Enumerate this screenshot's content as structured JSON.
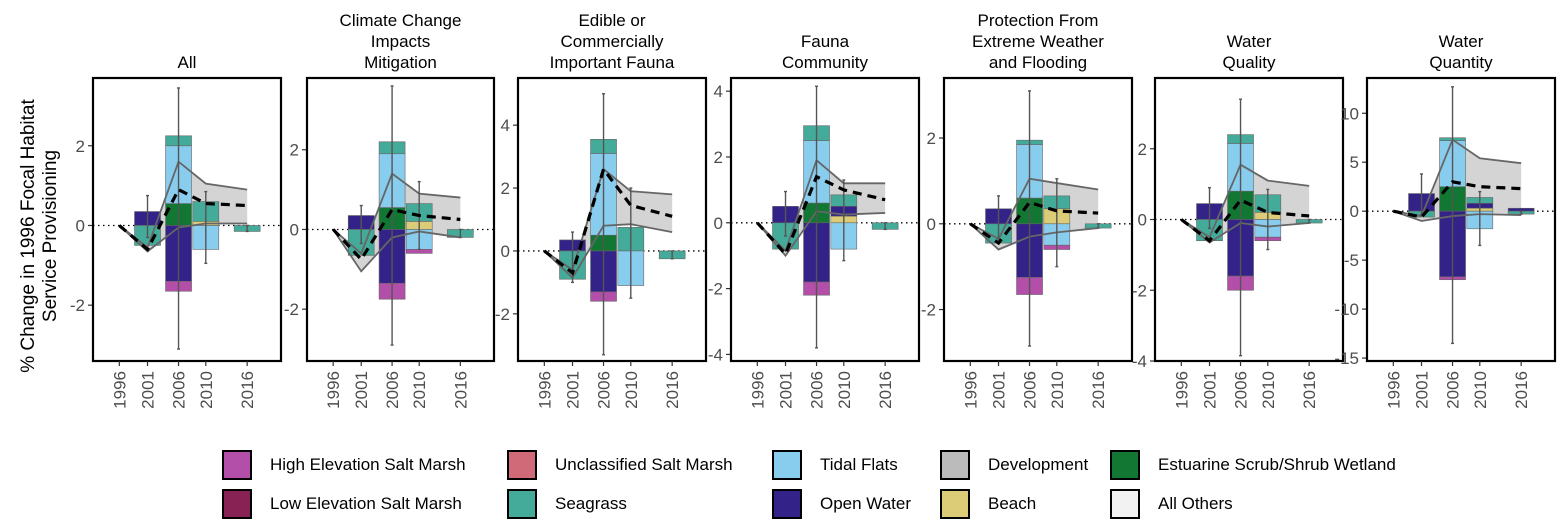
{
  "y_axis_title": [
    "% Change in 1996 Focal Habitat",
    "Service Provisioning"
  ],
  "legend": [
    {
      "label": "High Elevation Salt Marsh",
      "color": "#B34FA8"
    },
    {
      "label": "Unclassified Salt Marsh",
      "color": "#D06A78"
    },
    {
      "label": "Tidal Flats",
      "color": "#88CCEE"
    },
    {
      "label": "Development",
      "color": "#BBBBBB"
    },
    {
      "label": "Estuarine Scrub/Shrub Wetland",
      "color": "#117733"
    },
    {
      "label": "Low Elevation Salt Marsh",
      "color": "#882255"
    },
    {
      "label": "Seagrass",
      "color": "#44AA99"
    },
    {
      "label": "Open Water",
      "color": "#332288"
    },
    {
      "label": "Beach",
      "color": "#DDCC77"
    },
    {
      "label": "All Others",
      "color": "#F2F2F2"
    }
  ],
  "chart_data": [
    {
      "type": "bar",
      "title": "All",
      "x": [
        "1996",
        "2001",
        "2006",
        "2010",
        "2016"
      ],
      "ylim": [
        -3.4,
        3.7
      ],
      "yticks": [
        -2,
        0,
        2
      ],
      "stacks": [
        [],
        [
          {
            "habitat": "Open Water",
            "lo": 0,
            "hi": 0.35
          },
          {
            "habitat": "Seagrass",
            "lo": -0.5,
            "hi": 0
          }
        ],
        [
          {
            "habitat": "Estuarine Scrub/Shrub Wetland",
            "lo": 0,
            "hi": 0.55
          },
          {
            "habitat": "Tidal Flats",
            "lo": 0.55,
            "hi": 2.0
          },
          {
            "habitat": "Seagrass",
            "lo": 2.0,
            "hi": 2.25
          },
          {
            "habitat": "Open Water",
            "lo": -1.4,
            "hi": 0
          },
          {
            "habitat": "High Elevation Salt Marsh",
            "lo": -1.65,
            "hi": -1.4
          }
        ],
        [
          {
            "habitat": "Seagrass",
            "lo": 0,
            "hi": 0.6
          },
          {
            "habitat": "Beach",
            "lo": 0,
            "hi": 0.1
          },
          {
            "habitat": "Tidal Flats",
            "lo": -0.6,
            "hi": 0
          }
        ],
        [
          {
            "habitat": "Seagrass",
            "lo": -0.15,
            "hi": 0
          }
        ]
      ],
      "mean": [
        0,
        -0.6,
        0.9,
        0.55,
        0.5
      ],
      "band_hi": [
        0,
        -0.55,
        1.6,
        1.05,
        0.9
      ],
      "band_lo": [
        0,
        -0.65,
        -0.05,
        0.05,
        0.05
      ],
      "err_lo": [
        0,
        -0.3,
        -3.1,
        -0.95,
        -0.15
      ],
      "err_hi": [
        0,
        0.75,
        3.45,
        0.85,
        0.0
      ]
    },
    {
      "type": "bar",
      "title": "Climate Change\nImpacts\nMitigation",
      "x": [
        "1996",
        "2001",
        "2006",
        "2010",
        "2016"
      ],
      "ylim": [
        -3.3,
        3.8
      ],
      "yticks": [
        -2,
        0,
        2
      ],
      "stacks": [
        [],
        [
          {
            "habitat": "Open Water",
            "lo": 0,
            "hi": 0.35
          },
          {
            "habitat": "Seagrass",
            "lo": -0.65,
            "hi": 0
          }
        ],
        [
          {
            "habitat": "Estuarine Scrub/Shrub Wetland",
            "lo": 0,
            "hi": 0.55
          },
          {
            "habitat": "Tidal Flats",
            "lo": 0.55,
            "hi": 1.9
          },
          {
            "habitat": "Seagrass",
            "lo": 1.9,
            "hi": 2.2
          },
          {
            "habitat": "Open Water",
            "lo": -1.35,
            "hi": 0
          },
          {
            "habitat": "High Elevation Salt Marsh",
            "lo": -1.75,
            "hi": -1.35
          }
        ],
        [
          {
            "habitat": "Seagrass",
            "lo": 0.2,
            "hi": 0.65
          },
          {
            "habitat": "Beach",
            "lo": 0,
            "hi": 0.2
          },
          {
            "habitat": "Tidal Flats",
            "lo": -0.5,
            "hi": 0
          },
          {
            "habitat": "High Elevation Salt Marsh",
            "lo": -0.6,
            "hi": -0.5
          }
        ],
        [
          {
            "habitat": "Seagrass",
            "lo": -0.2,
            "hi": 0
          }
        ]
      ],
      "mean": [
        0,
        -0.75,
        0.5,
        0.35,
        0.25
      ],
      "band_hi": [
        0,
        -0.6,
        1.4,
        0.9,
        0.8
      ],
      "band_lo": [
        0,
        -1.05,
        -0.2,
        -0.05,
        -0.2
      ],
      "err_lo": [
        0,
        -0.35,
        -2.9,
        -0.5,
        -0.2
      ],
      "err_hi": [
        0,
        0.6,
        3.6,
        1.2,
        0.0
      ]
    },
    {
      "type": "bar",
      "title": "Edible or\nCommercially\nImportant Fauna",
      "x": [
        "1996",
        "2001",
        "2006",
        "2010",
        "2016"
      ],
      "ylim": [
        -3.5,
        5.5
      ],
      "yticks": [
        -2,
        0,
        2,
        4
      ],
      "stacks": [
        [],
        [
          {
            "habitat": "Open Water",
            "lo": 0,
            "hi": 0.35
          },
          {
            "habitat": "Seagrass",
            "lo": -0.9,
            "hi": 0
          }
        ],
        [
          {
            "habitat": "Estuarine Scrub/Shrub Wetland",
            "lo": 0,
            "hi": 0.5
          },
          {
            "habitat": "Tidal Flats",
            "lo": 0.5,
            "hi": 3.1
          },
          {
            "habitat": "Seagrass",
            "lo": 3.1,
            "hi": 3.55
          },
          {
            "habitat": "Open Water",
            "lo": -1.3,
            "hi": 0
          },
          {
            "habitat": "High Elevation Salt Marsh",
            "lo": -1.6,
            "hi": -1.3
          }
        ],
        [
          {
            "habitat": "Seagrass",
            "lo": 0,
            "hi": 0.75
          },
          {
            "habitat": "Tidal Flats",
            "lo": -1.1,
            "hi": 0
          }
        ],
        [
          {
            "habitat": "Seagrass",
            "lo": -0.25,
            "hi": 0
          }
        ]
      ],
      "mean": [
        0,
        -0.7,
        2.6,
        1.45,
        1.1
      ],
      "band_hi": [
        0,
        -0.6,
        2.6,
        1.9,
        1.8
      ],
      "band_lo": [
        0,
        -0.85,
        0.8,
        0.85,
        0.6
      ],
      "err_lo": [
        0,
        -1.0,
        -3.3,
        -1.5,
        -0.25
      ],
      "err_hi": [
        0,
        0.6,
        5.0,
        2.0,
        0.0
      ]
    },
    {
      "type": "bar",
      "title": "Fauna\nCommunity",
      "x": [
        "1996",
        "2001",
        "2006",
        "2010",
        "2016"
      ],
      "ylim": [
        -4.2,
        4.4
      ],
      "yticks": [
        -4,
        -2,
        0,
        2,
        4
      ],
      "stacks": [
        [],
        [
          {
            "habitat": "Open Water",
            "lo": 0,
            "hi": 0.5
          },
          {
            "habitat": "Seagrass",
            "lo": -0.8,
            "hi": 0
          }
        ],
        [
          {
            "habitat": "Estuarine Scrub/Shrub Wetland",
            "lo": 0,
            "hi": 0.6
          },
          {
            "habitat": "Tidal Flats",
            "lo": 0.6,
            "hi": 2.5
          },
          {
            "habitat": "Seagrass",
            "lo": 2.5,
            "hi": 2.95
          },
          {
            "habitat": "Open Water",
            "lo": -1.8,
            "hi": 0
          },
          {
            "habitat": "High Elevation Salt Marsh",
            "lo": -2.2,
            "hi": -1.8
          }
        ],
        [
          {
            "habitat": "Seagrass",
            "lo": 0.5,
            "hi": 0.85
          },
          {
            "habitat": "Open Water",
            "lo": 0.2,
            "hi": 0.5
          },
          {
            "habitat": "Beach",
            "lo": 0,
            "hi": 0.2
          },
          {
            "habitat": "Tidal Flats",
            "lo": -0.8,
            "hi": 0
          }
        ],
        [
          {
            "habitat": "Seagrass",
            "lo": -0.2,
            "hi": 0
          }
        ]
      ],
      "mean": [
        0,
        -0.95,
        1.4,
        1.0,
        0.7
      ],
      "band_hi": [
        0,
        -0.85,
        1.9,
        1.2,
        1.2
      ],
      "band_lo": [
        0,
        -1.0,
        0.35,
        0.25,
        0.3
      ],
      "err_lo": [
        0,
        -0.4,
        -3.8,
        -1.15,
        -0.2
      ],
      "err_hi": [
        0,
        0.95,
        4.15,
        1.3,
        0.0
      ]
    },
    {
      "type": "bar",
      "title": "Protection From\nExtreme Weather\nand Flooding",
      "x": [
        "1996",
        "2001",
        "2006",
        "2010",
        "2016"
      ],
      "ylim": [
        -3.2,
        3.4
      ],
      "yticks": [
        -2,
        0,
        2
      ],
      "stacks": [
        [],
        [
          {
            "habitat": "Open Water",
            "lo": 0,
            "hi": 0.35
          },
          {
            "habitat": "Seagrass",
            "lo": -0.45,
            "hi": 0
          }
        ],
        [
          {
            "habitat": "Estuarine Scrub/Shrub Wetland",
            "lo": 0,
            "hi": 0.6
          },
          {
            "habitat": "Tidal Flats",
            "lo": 0.6,
            "hi": 1.85
          },
          {
            "habitat": "Seagrass",
            "lo": 1.85,
            "hi": 1.95
          },
          {
            "habitat": "Open Water",
            "lo": -1.25,
            "hi": 0
          },
          {
            "habitat": "High Elevation Salt Marsh",
            "lo": -1.65,
            "hi": -1.25
          }
        ],
        [
          {
            "habitat": "Seagrass",
            "lo": 0.35,
            "hi": 0.65
          },
          {
            "habitat": "Beach",
            "lo": 0,
            "hi": 0.35
          },
          {
            "habitat": "Tidal Flats",
            "lo": -0.5,
            "hi": 0
          },
          {
            "habitat": "High Elevation Salt Marsh",
            "lo": -0.6,
            "hi": -0.5
          }
        ],
        [
          {
            "habitat": "Seagrass",
            "lo": -0.1,
            "hi": 0
          }
        ]
      ],
      "mean": [
        0,
        -0.45,
        0.5,
        0.3,
        0.25
      ],
      "band_hi": [
        0,
        -0.35,
        1.05,
        0.95,
        0.8
      ],
      "band_lo": [
        0,
        -0.6,
        -0.3,
        -0.2,
        -0.1
      ],
      "err_lo": [
        0,
        -0.35,
        -2.85,
        -1.0,
        -0.1
      ],
      "err_hi": [
        0,
        0.65,
        3.1,
        1.05,
        0.0
      ]
    },
    {
      "type": "bar",
      "title": "Water\nQuality",
      "x": [
        "1996",
        "2001",
        "2006",
        "2010",
        "2016"
      ],
      "ylim": [
        -4.0,
        4.0
      ],
      "yticks": [
        -4,
        -2,
        0,
        2
      ],
      "stacks": [
        [],
        [
          {
            "habitat": "Open Water",
            "lo": 0,
            "hi": 0.45
          },
          {
            "habitat": "Seagrass",
            "lo": -0.6,
            "hi": 0
          }
        ],
        [
          {
            "habitat": "Estuarine Scrub/Shrub Wetland",
            "lo": 0,
            "hi": 0.8
          },
          {
            "habitat": "Tidal Flats",
            "lo": 0.8,
            "hi": 2.15
          },
          {
            "habitat": "Seagrass",
            "lo": 2.15,
            "hi": 2.4
          },
          {
            "habitat": "Open Water",
            "lo": -1.6,
            "hi": 0
          },
          {
            "habitat": "High Elevation Salt Marsh",
            "lo": -2.0,
            "hi": -1.6
          }
        ],
        [
          {
            "habitat": "Seagrass",
            "lo": 0.2,
            "hi": 0.7
          },
          {
            "habitat": "Beach",
            "lo": 0,
            "hi": 0.2
          },
          {
            "habitat": "Tidal Flats",
            "lo": -0.5,
            "hi": 0
          },
          {
            "habitat": "High Elevation Salt Marsh",
            "lo": -0.6,
            "hi": -0.5
          }
        ],
        [
          {
            "habitat": "Seagrass",
            "lo": -0.1,
            "hi": 0
          }
        ]
      ],
      "mean": [
        0,
        -0.6,
        0.55,
        0.2,
        0.1
      ],
      "band_hi": [
        0,
        -0.5,
        1.55,
        1.1,
        0.95
      ],
      "band_lo": [
        0,
        -0.65,
        -0.1,
        -0.2,
        -0.1
      ],
      "err_lo": [
        0,
        -0.25,
        -3.85,
        -0.85,
        -0.1
      ],
      "err_hi": [
        0,
        0.9,
        3.4,
        0.85,
        0.0
      ]
    },
    {
      "type": "bar",
      "title": "Water\nQuantity",
      "x": [
        "1996",
        "2001",
        "2006",
        "2010",
        "2016"
      ],
      "ylim": [
        -15.3,
        13.6
      ],
      "yticks": [
        -15,
        -10,
        -5,
        0,
        5,
        10
      ],
      "stacks": [
        [],
        [
          {
            "habitat": "Open Water",
            "lo": 0,
            "hi": 1.8
          },
          {
            "habitat": "Seagrass",
            "lo": -0.6,
            "hi": 0
          }
        ],
        [
          {
            "habitat": "Estuarine Scrub/Shrub Wetland",
            "lo": 0,
            "hi": 2.5
          },
          {
            "habitat": "Tidal Flats",
            "lo": 2.5,
            "hi": 7.2
          },
          {
            "habitat": "Seagrass",
            "lo": 7.2,
            "hi": 7.5
          },
          {
            "habitat": "Open Water",
            "lo": -6.7,
            "hi": 0
          },
          {
            "habitat": "High Elevation Salt Marsh",
            "lo": -7.0,
            "hi": -6.7
          }
        ],
        [
          {
            "habitat": "Seagrass",
            "lo": 0.8,
            "hi": 1.4
          },
          {
            "habitat": "Open Water",
            "lo": 0.3,
            "hi": 0.8
          },
          {
            "habitat": "Beach",
            "lo": 0,
            "hi": 0.3
          },
          {
            "habitat": "Tidal Flats",
            "lo": -1.8,
            "hi": 0
          }
        ],
        [
          {
            "habitat": "Open Water",
            "lo": 0,
            "hi": 0.3
          },
          {
            "habitat": "Seagrass",
            "lo": -0.3,
            "hi": 0
          }
        ]
      ],
      "mean": [
        0,
        -0.6,
        3.0,
        2.5,
        2.3
      ],
      "band_hi": [
        0,
        -0.5,
        7.3,
        5.4,
        4.9
      ],
      "band_lo": [
        0,
        -1.0,
        -0.5,
        -0.3,
        -0.4
      ],
      "err_lo": [
        0,
        -0.4,
        -13.5,
        -3.5,
        -0.3
      ],
      "err_hi": [
        0,
        3.8,
        12.7,
        2.0,
        0.0
      ]
    }
  ]
}
